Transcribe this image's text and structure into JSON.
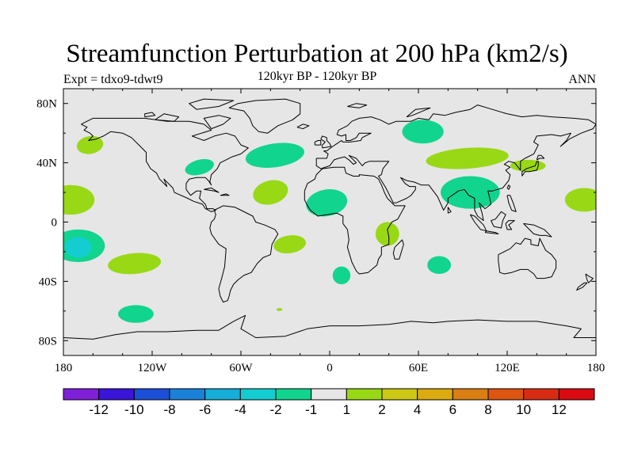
{
  "header": {
    "title": "Streamfunction Perturbation at 200 hPa (km2/s)",
    "subtitle": "120kyr BP - 120kyr BP",
    "left": "Expt = tdxo9-tdwt9",
    "right": "ANN"
  },
  "chart_data": {
    "type": "contour-map",
    "title": "Streamfunction Perturbation at 200 hPa (km2/s)",
    "subtitle": "120kyr BP - 120kyr BP",
    "experiment": "Expt = tdxo9-tdwt9",
    "season": "ANN",
    "projection": "cylindrical-equidistant",
    "lon_range": [
      -180,
      180
    ],
    "lat_range": [
      -90,
      90
    ],
    "x_ticks": [
      {
        "lon": -180,
        "label": "180"
      },
      {
        "lon": -120,
        "label": "120W"
      },
      {
        "lon": -60,
        "label": "60W"
      },
      {
        "lon": 0,
        "label": "0"
      },
      {
        "lon": 60,
        "label": "60E"
      },
      {
        "lon": 120,
        "label": "120E"
      },
      {
        "lon": 180,
        "label": "180"
      }
    ],
    "y_ticks": [
      {
        "lat": 80,
        "label": "80N"
      },
      {
        "lat": 40,
        "label": "40N"
      },
      {
        "lat": 0,
        "label": "0"
      },
      {
        "lat": -40,
        "label": "40S"
      },
      {
        "lat": -80,
        "label": "80S"
      }
    ],
    "background_color": "#e6e6e6",
    "colorbar": {
      "colors": [
        "#7f1fd9",
        "#3a14d9",
        "#1b4fd6",
        "#1a80d8",
        "#14aed6",
        "#14cdd0",
        "#11d48f",
        "#e6e6e6",
        "#99d814",
        "#ccc814",
        "#dcaa11",
        "#d97f14",
        "#dc5511",
        "#d92b14",
        "#d90a11"
      ],
      "labels": [
        "-12",
        "-10",
        "-8",
        "-6",
        "-4",
        "-2",
        "-1",
        "1",
        "2",
        "4",
        "6",
        "8",
        "10",
        "12"
      ]
    },
    "features": [
      {
        "id": "n-pacific-pos",
        "lon": -162,
        "lat": 52,
        "rlon": 9,
        "rlat": 6,
        "rot": -10,
        "color": "#99d814"
      },
      {
        "id": "e-pacific-pos",
        "lon": -175,
        "lat": 15,
        "rlon": 16,
        "rlat": 10,
        "rot": 0,
        "color": "#99d814"
      },
      {
        "id": "s-pacific-neg",
        "lon": -170,
        "lat": -16,
        "rlon": 18,
        "rlat": 11,
        "rot": 0,
        "color": "#11d48f"
      },
      {
        "id": "s-pacific-core",
        "lon": -170,
        "lat": -17,
        "rlon": 9,
        "rlat": 7,
        "rot": 0,
        "color": "#14cdd0"
      },
      {
        "id": "se-pacific-pos",
        "lon": -132,
        "lat": -28,
        "rlon": 18,
        "rlat": 7,
        "rot": -5,
        "color": "#99d814"
      },
      {
        "id": "s-ocean-neg",
        "lon": -131,
        "lat": -62,
        "rlon": 12,
        "rlat": 6,
        "rot": 0,
        "color": "#11d48f"
      },
      {
        "id": "n-america-neg",
        "lon": -88,
        "lat": 37,
        "rlon": 10,
        "rlat": 5,
        "rot": -15,
        "color": "#11d48f"
      },
      {
        "id": "n-atlantic-neg",
        "lon": -37,
        "lat": 45,
        "rlon": 20,
        "rlat": 8,
        "rot": -8,
        "color": "#11d48f"
      },
      {
        "id": "trop-atlantic-pos",
        "lon": -40,
        "lat": 20,
        "rlon": 12,
        "rlat": 8,
        "rot": -15,
        "color": "#99d814"
      },
      {
        "id": "s-atlantic-pos",
        "lon": -27,
        "lat": -15,
        "rlon": 11,
        "rlat": 6,
        "rot": -8,
        "color": "#99d814"
      },
      {
        "id": "s-atlantic-dot",
        "lon": -34,
        "lat": -59,
        "rlon": 2,
        "rlat": 1,
        "rot": 0,
        "color": "#99d814"
      },
      {
        "id": "africa-neg",
        "lon": -2,
        "lat": 13,
        "rlon": 14,
        "rlat": 9,
        "rot": -10,
        "color": "#11d48f"
      },
      {
        "id": "e-africa-pos",
        "lon": 39,
        "lat": -8,
        "rlon": 8,
        "rlat": 8,
        "rot": 0,
        "color": "#99d814"
      },
      {
        "id": "s-africa-neg",
        "lon": 8,
        "lat": -36,
        "rlon": 6,
        "rlat": 6,
        "rot": 0,
        "color": "#11d48f"
      },
      {
        "id": "indian-neg",
        "lon": 74,
        "lat": -29,
        "rlon": 8,
        "rlat": 6,
        "rot": 0,
        "color": "#11d48f"
      },
      {
        "id": "siberia-neg",
        "lon": 63,
        "lat": 61,
        "rlon": 14,
        "rlat": 8,
        "rot": 0,
        "color": "#11d48f"
      },
      {
        "id": "asia-pos",
        "lon": 93,
        "lat": 43,
        "rlon": 28,
        "rlat": 7,
        "rot": -4,
        "color": "#99d814"
      },
      {
        "id": "japan-pos",
        "lon": 134,
        "lat": 38,
        "rlon": 12,
        "rlat": 4,
        "rot": 0,
        "color": "#99d814"
      },
      {
        "id": "s-asia-neg",
        "lon": 95,
        "lat": 20,
        "rlon": 20,
        "rlat": 11,
        "rot": 0,
        "color": "#11d48f"
      },
      {
        "id": "w-pacific-pos",
        "lon": 172,
        "lat": 15,
        "rlon": 13,
        "rlat": 8,
        "rot": 0,
        "color": "#99d814"
      }
    ]
  }
}
